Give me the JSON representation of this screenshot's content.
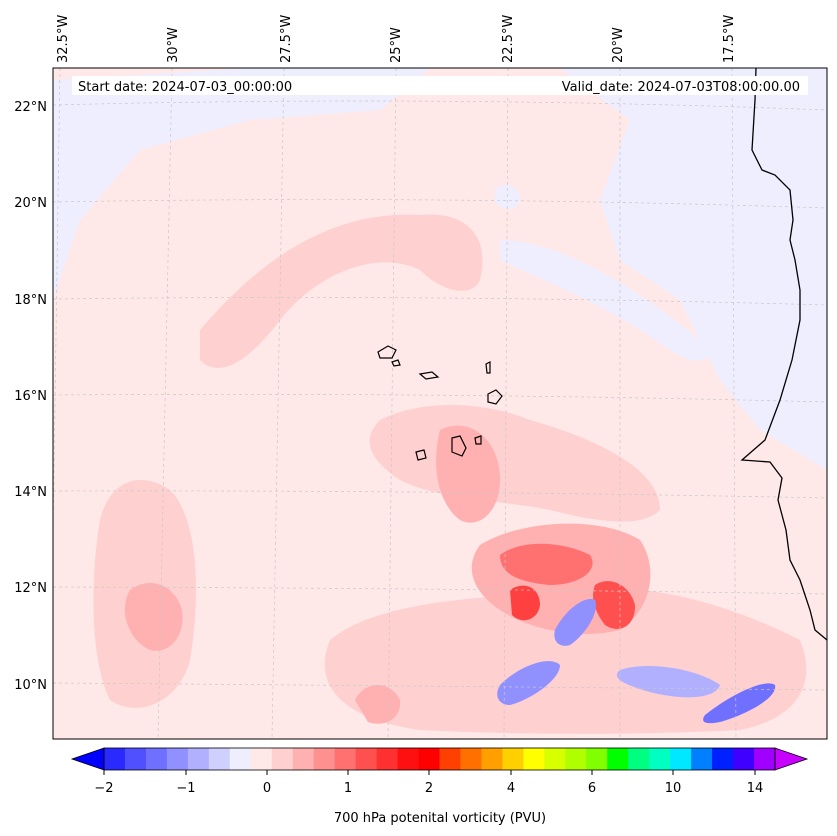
{
  "map": {
    "header": {
      "start_date": "Start date: 2024-07-03_00:00:00",
      "valid_date": "Valid_date: 2024-07-03T08:00:00.00"
    },
    "lon_labels": [
      "32.5°W",
      "30°W",
      "27.5°W",
      "25°W",
      "22.5°W",
      "20°W",
      "17.5°W"
    ],
    "lat_labels": [
      "22°N",
      "20°N",
      "18°N",
      "16°N",
      "14°N",
      "12°N",
      "10°N"
    ],
    "background_color": "#ffe8e8",
    "coastline_color": "#000000",
    "gridline_color": "#c8c8c8"
  },
  "colorbar": {
    "label": "700 hPa potenital vorticity (PVU)",
    "tick_labels": [
      "−2",
      "−1",
      "0",
      "1",
      "2",
      "4",
      "6",
      "10",
      "14"
    ],
    "colors": [
      "#0000ff",
      "#2a2aff",
      "#5050ff",
      "#7070ff",
      "#9090ff",
      "#b0b0ff",
      "#d0d0ff",
      "#eeeeff",
      "#ffe8e8",
      "#ffd0d0",
      "#ffb0b0",
      "#ff9090",
      "#ff7070",
      "#ff5050",
      "#ff3030",
      "#ff1010",
      "#ff0000",
      "#ff4000",
      "#ff7000",
      "#ffa000",
      "#ffd000",
      "#ffff00",
      "#d8ff00",
      "#b0ff00",
      "#80ff00",
      "#00ff00",
      "#00ff80",
      "#00ffc0",
      "#00e8ff",
      "#0080ff",
      "#0020ff",
      "#4000ff",
      "#a000ff",
      "#c800ff"
    ]
  }
}
